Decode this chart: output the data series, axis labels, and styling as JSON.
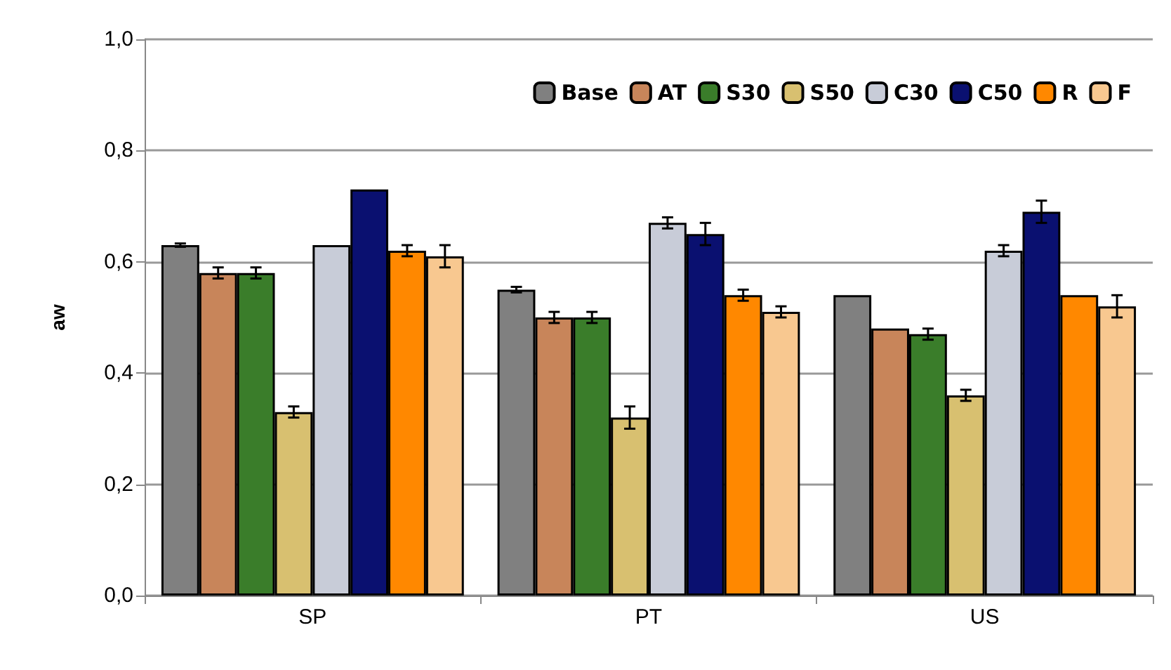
{
  "chart_data": {
    "type": "bar",
    "ylabel": "aw",
    "categories": [
      "SP",
      "PT",
      "US"
    ],
    "series": [
      {
        "name": "Base",
        "color": "#808080",
        "values": [
          0.63,
          0.55,
          0.54
        ],
        "errors": [
          0.003,
          0.005,
          null
        ]
      },
      {
        "name": "AT",
        "color": "#c8855a",
        "values": [
          0.58,
          0.5,
          0.48
        ],
        "errors": [
          0.01,
          0.01,
          null
        ]
      },
      {
        "name": "S30",
        "color": "#3a7d2a",
        "values": [
          0.58,
          0.5,
          0.47
        ],
        "errors": [
          0.01,
          0.01,
          0.01
        ]
      },
      {
        "name": "S50",
        "color": "#d8c070",
        "values": [
          0.33,
          0.32,
          0.36
        ],
        "errors": [
          0.01,
          0.02,
          0.01
        ]
      },
      {
        "name": "C30",
        "color": "#c8ccd8",
        "values": [
          0.63,
          0.67,
          0.62
        ],
        "errors": [
          null,
          0.01,
          0.01
        ]
      },
      {
        "name": "C50",
        "color": "#0a1070",
        "values": [
          0.73,
          0.65,
          0.69
        ],
        "errors": [
          null,
          0.02,
          0.02
        ]
      },
      {
        "name": "R",
        "color": "#ff8800",
        "values": [
          0.62,
          0.54,
          0.54
        ],
        "errors": [
          0.01,
          0.01,
          null
        ]
      },
      {
        "name": "F",
        "color": "#f8c890",
        "values": [
          0.61,
          0.51,
          0.52
        ],
        "errors": [
          0.02,
          0.01,
          0.02
        ]
      }
    ],
    "ylim": [
      0,
      1
    ],
    "yticks": [
      {
        "value": 0,
        "label": "0,0"
      },
      {
        "value": 0.2,
        "label": "0,2"
      },
      {
        "value": 0.4,
        "label": "0,4"
      },
      {
        "value": 0.6,
        "label": "0,6"
      },
      {
        "value": 0.8,
        "label": "0,8"
      },
      {
        "value": 1,
        "label": "1,0"
      }
    ],
    "grid": "y",
    "legend": "top right"
  }
}
